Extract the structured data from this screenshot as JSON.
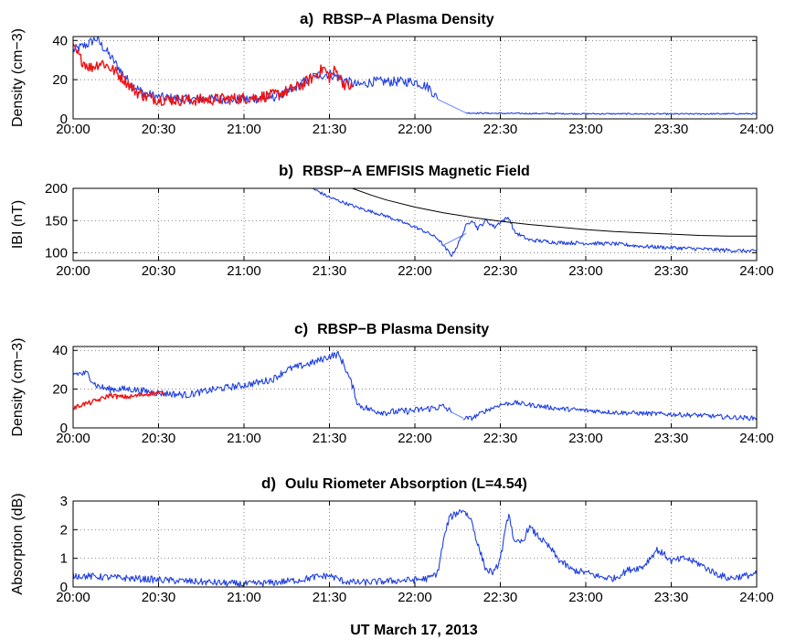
{
  "figure": {
    "xlabel": "UT  March 17, 2013"
  },
  "chart_data": [
    {
      "type": "line",
      "letter": "a)",
      "title": "RBSP−A Plasma Density",
      "ylabel": "Density (cm−3)",
      "xlim": [
        "20:00",
        "24:00"
      ],
      "ylim": [
        0,
        42
      ],
      "yticks": [
        "0",
        "20",
        "40"
      ],
      "ytick_values": [
        0,
        20,
        40
      ],
      "xtick_labels": [
        "20:00",
        "20:30",
        "21:00",
        "21:30",
        "22:00",
        "22:30",
        "23:00",
        "23:30",
        "24:00"
      ],
      "grid": true,
      "series": [
        {
          "color": "#1f3fe0",
          "noise": 2.5,
          "x": [
            "20:00",
            "20:05",
            "20:08",
            "20:12",
            "20:16",
            "20:20",
            "20:25",
            "20:30",
            "20:40",
            "20:50",
            "21:00",
            "21:10",
            "21:15",
            "21:20",
            "21:25",
            "21:30",
            "21:35",
            "21:40",
            "21:45",
            "21:50",
            "21:55",
            "22:00",
            "22:05",
            "22:08"
          ],
          "y": [
            35,
            38,
            41,
            34,
            26,
            18,
            13,
            11,
            10,
            10,
            10,
            11,
            13,
            18,
            22,
            23,
            20,
            17,
            19,
            19,
            19,
            19,
            16,
            10
          ]
        },
        {
          "color": "#6e8cff",
          "noise": 0,
          "x": [
            "22:08",
            "22:18"
          ],
          "y": [
            10,
            3
          ]
        },
        {
          "color": "#1f3fe0",
          "noise": 0.35,
          "x": [
            "22:18",
            "22:30",
            "23:00",
            "23:30",
            "24:00"
          ],
          "y": [
            3,
            2.8,
            2.6,
            2.5,
            2.6
          ]
        },
        {
          "color": "#ee1111",
          "noise": 3,
          "x": [
            "20:00",
            "20:03",
            "20:06",
            "20:10",
            "20:14",
            "20:18",
            "20:22",
            "20:26",
            "20:30",
            "20:40",
            "20:50",
            "21:00",
            "21:10",
            "21:15",
            "21:20",
            "21:25",
            "21:28",
            "21:30",
            "21:32",
            "21:35",
            "21:38"
          ],
          "y": [
            36,
            30,
            26,
            29,
            25,
            20,
            14,
            11,
            10,
            9.5,
            10,
            10.5,
            12,
            14,
            17,
            22,
            26,
            21,
            25,
            18,
            16
          ]
        }
      ]
    },
    {
      "type": "line",
      "letter": "b)",
      "title": "RBSP−A EMFISIS Magnetic Field",
      "ylabel": "IBI (nT)",
      "xlim": [
        "20:00",
        "24:00"
      ],
      "ylim": [
        88,
        200
      ],
      "yticks": [
        "100",
        "150",
        "200"
      ],
      "ytick_values": [
        100,
        150,
        200
      ],
      "xtick_labels": [
        "20:00",
        "20:30",
        "21:00",
        "21:30",
        "22:00",
        "22:30",
        "23:00",
        "23:30",
        "24:00"
      ],
      "grid": true,
      "series": [
        {
          "color": "#1f3fe0",
          "noise": 2.5,
          "x": [
            "21:24",
            "21:30",
            "21:40",
            "21:50",
            "22:00",
            "22:05",
            "22:08",
            "22:10"
          ],
          "y": [
            200,
            186,
            170,
            157,
            140,
            130,
            122,
            112
          ]
        },
        {
          "color": "#6e8cff",
          "noise": 0,
          "x": [
            "22:10",
            "22:18"
          ],
          "y": [
            112,
            130
          ]
        },
        {
          "color": "#1f3fe0",
          "noise": 3,
          "x": [
            "22:10",
            "22:13",
            "22:15",
            "22:18",
            "22:20",
            "22:22",
            "22:25",
            "22:28",
            "22:30",
            "22:33",
            "22:35",
            "22:38",
            "22:40",
            "22:45",
            "22:50",
            "23:00",
            "23:10",
            "23:20",
            "23:30",
            "23:40",
            "23:50",
            "24:00"
          ],
          "y": [
            110,
            96,
            112,
            142,
            152,
            138,
            150,
            140,
            148,
            155,
            132,
            125,
            120,
            118,
            116,
            115,
            114,
            110,
            108,
            106,
            104,
            102
          ]
        },
        {
          "color": "#000000",
          "noise": 0,
          "x": [
            "21:38",
            "21:45",
            "21:50",
            "22:00",
            "22:10",
            "22:20",
            "22:30",
            "22:40",
            "22:50",
            "23:00",
            "23:10",
            "23:20",
            "23:30",
            "23:40",
            "23:50",
            "24:00"
          ],
          "y": [
            200,
            189,
            182,
            171,
            162,
            155,
            149,
            144,
            140,
            136,
            133,
            131,
            129,
            127,
            126,
            126
          ]
        }
      ]
    },
    {
      "type": "line",
      "letter": "c)",
      "title": "RBSP−B Plasma Density",
      "ylabel": "Density (cm−3)",
      "xlim": [
        "20:00",
        "24:00"
      ],
      "ylim": [
        0,
        42
      ],
      "yticks": [
        "0",
        "20",
        "40"
      ],
      "ytick_values": [
        0,
        20,
        40
      ],
      "xtick_labels": [
        "20:00",
        "20:30",
        "21:00",
        "21:30",
        "22:00",
        "22:30",
        "23:00",
        "23:30",
        "24:00"
      ],
      "grid": true,
      "series": [
        {
          "color": "#1f3fe0",
          "noise": 1.8,
          "x": [
            "20:00",
            "20:05",
            "20:08",
            "20:12",
            "20:20",
            "20:30",
            "20:40",
            "20:50",
            "21:00",
            "21:10",
            "21:15",
            "21:20",
            "21:25",
            "21:30",
            "21:33",
            "21:35",
            "21:38",
            "21:40",
            "21:45",
            "21:50",
            "22:00",
            "22:10",
            "22:13"
          ],
          "y": [
            28,
            28,
            22,
            20,
            20,
            18,
            17,
            20,
            22,
            25,
            30,
            32,
            34,
            37,
            38,
            33,
            22,
            12,
            9,
            8,
            9,
            11,
            8
          ]
        },
        {
          "color": "#6e8cff",
          "noise": 0,
          "x": [
            "22:13",
            "22:17"
          ],
          "y": [
            8,
            5
          ]
        },
        {
          "color": "#1f3fe0",
          "noise": 1.2,
          "x": [
            "22:17",
            "22:20",
            "22:25",
            "22:30",
            "22:35",
            "22:40",
            "22:45",
            "22:50",
            "23:00",
            "23:10",
            "23:20",
            "23:30",
            "23:40",
            "23:50",
            "24:00"
          ],
          "y": [
            5,
            5,
            9,
            12,
            13,
            12,
            11,
            10,
            9,
            8,
            7.5,
            7,
            6.5,
            5.5,
            5
          ]
        },
        {
          "color": "#ee1111",
          "noise": 1.2,
          "x": [
            "20:00",
            "20:03",
            "20:06",
            "20:10",
            "20:13",
            "20:16",
            "20:20",
            "20:24",
            "20:28",
            "20:32"
          ],
          "y": [
            10,
            12,
            13,
            15,
            17,
            16,
            16,
            17,
            18,
            18
          ]
        }
      ]
    },
    {
      "type": "line",
      "letter": "d)",
      "title": "Oulu Riometer Absorption (L=4.54)",
      "ylabel": "Absorption (dB)",
      "xlim": [
        "20:00",
        "24:00"
      ],
      "ylim": [
        0,
        3
      ],
      "yticks": [
        "0",
        "1",
        "2",
        "3"
      ],
      "ytick_values": [
        0,
        1,
        2,
        3
      ],
      "xtick_labels": [
        "20:00",
        "20:30",
        "21:00",
        "21:30",
        "22:00",
        "22:30",
        "23:00",
        "23:30",
        "24:00"
      ],
      "grid": true,
      "series": [
        {
          "color": "#1f3fe0",
          "noise": 0.12,
          "x": [
            "20:00",
            "20:10",
            "20:20",
            "20:30",
            "20:40",
            "20:50",
            "21:00",
            "21:10",
            "21:20",
            "21:25",
            "21:30",
            "21:35",
            "21:40",
            "21:50",
            "22:00",
            "22:05",
            "22:08",
            "22:10",
            "22:12",
            "22:15",
            "22:17",
            "22:20",
            "22:22",
            "22:25",
            "22:28",
            "22:30",
            "22:33",
            "22:35",
            "22:38",
            "22:40",
            "22:43",
            "22:45",
            "22:48",
            "22:50",
            "22:55",
            "23:00",
            "23:05",
            "23:10",
            "23:15",
            "23:20",
            "23:25",
            "23:28",
            "23:30",
            "23:35",
            "23:40",
            "23:45",
            "23:50",
            "24:00"
          ],
          "y": [
            0.4,
            0.35,
            0.3,
            0.25,
            0.2,
            0.15,
            0.1,
            0.15,
            0.25,
            0.35,
            0.4,
            0.2,
            0.15,
            0.2,
            0.25,
            0.3,
            0.5,
            1.6,
            2.4,
            2.6,
            2.7,
            2.3,
            1.5,
            0.6,
            0.5,
            1.0,
            2.6,
            1.5,
            1.6,
            2.1,
            1.8,
            1.6,
            1.3,
            1.0,
            0.6,
            0.5,
            0.35,
            0.3,
            0.6,
            0.7,
            1.3,
            1.1,
            0.9,
            1.0,
            0.8,
            0.5,
            0.3,
            0.45
          ]
        }
      ]
    }
  ]
}
